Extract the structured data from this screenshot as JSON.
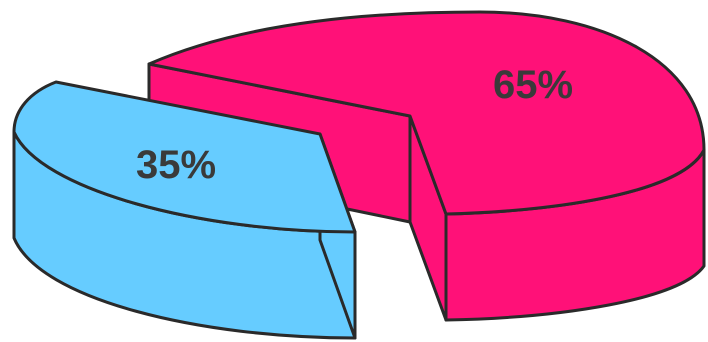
{
  "chart_data": {
    "type": "pie",
    "style": "3d-exploded",
    "slices": [
      {
        "value": 65,
        "label": "65%",
        "color": "#FF1178"
      },
      {
        "value": 35,
        "label": "35%",
        "color": "#66CCFF"
      }
    ],
    "outline_color": "#2a2a2a"
  }
}
